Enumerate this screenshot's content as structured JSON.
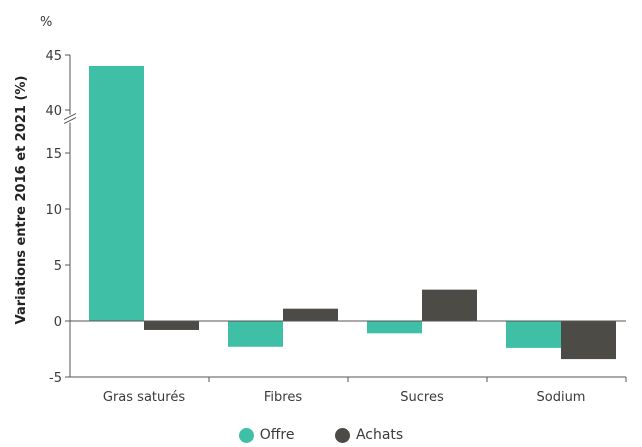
{
  "chart_data": {
    "type": "bar",
    "unit_label": "%",
    "ylabel": "Variations entre 2016 et 2021 (%)",
    "categories": [
      "Gras saturés",
      "Fibres",
      "Sucres",
      "Sodium"
    ],
    "series": [
      {
        "name": "Offre",
        "color": "#3fbfa5",
        "values": [
          44,
          -2.3,
          -1.1,
          -2.4
        ]
      },
      {
        "name": "Achats",
        "color": "#4d4b45",
        "values": [
          -0.8,
          1.1,
          2.8,
          -3.4
        ]
      }
    ],
    "yticks": [
      "-5",
      "0",
      "5",
      "10",
      "15",
      "40",
      "45"
    ],
    "ylim": [
      -5,
      45
    ],
    "axis_break": {
      "from": 17,
      "to": 38
    },
    "grid": false,
    "legend_position": "bottom"
  }
}
